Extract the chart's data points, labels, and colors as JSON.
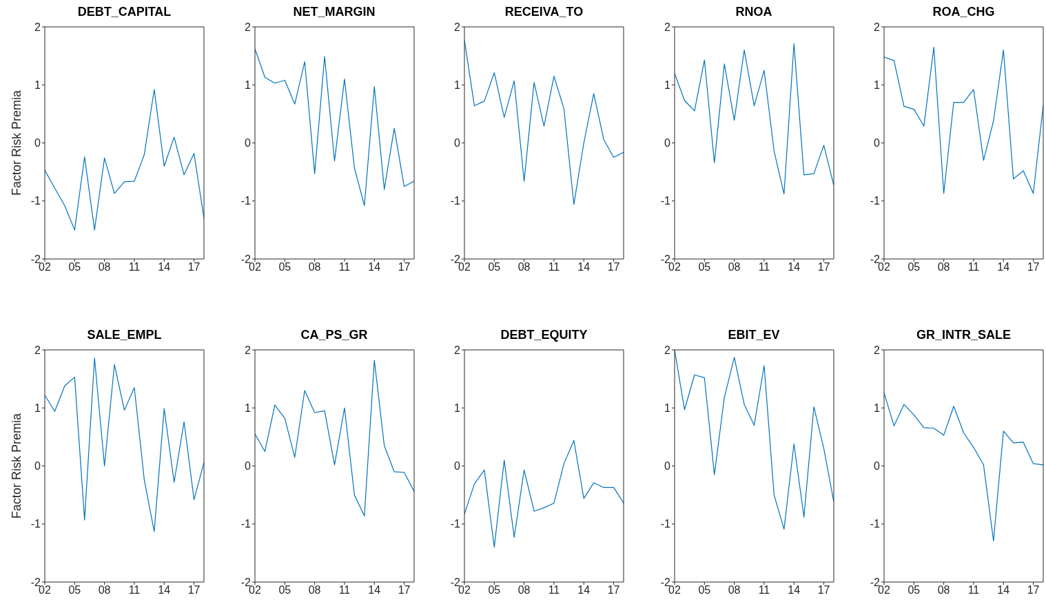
{
  "chart_data": [
    {
      "type": "line",
      "title": "DEBT_CAPITAL",
      "ylabel": "Factor Risk Premia",
      "color": "#0072bd",
      "x": [
        2002,
        2003,
        2004,
        2005,
        2006,
        2007,
        2008,
        2009,
        2010,
        2011,
        2012,
        2013,
        2014,
        2015,
        2016,
        2017,
        2018
      ],
      "values": [
        -0.47,
        -0.78,
        -1.08,
        -1.5,
        -0.24,
        -1.5,
        -0.26,
        -0.87,
        -0.67,
        -0.66,
        -0.2,
        0.92,
        -0.4,
        0.1,
        -0.55,
        -0.18,
        -1.3
      ],
      "xlim": [
        2002,
        2018
      ],
      "xticks": [
        {
          "value": 2002,
          "label": "02"
        },
        {
          "value": 2005,
          "label": "05"
        },
        {
          "value": 2008,
          "label": "08"
        },
        {
          "value": 2011,
          "label": "11"
        },
        {
          "value": 2014,
          "label": "14"
        },
        {
          "value": 2017,
          "label": "17"
        }
      ],
      "ylim": [
        -2,
        2
      ],
      "yticks": [
        -2,
        -1,
        0,
        1,
        2
      ]
    },
    {
      "type": "line",
      "title": "NET_MARGIN",
      "color": "#0072bd",
      "x": [
        2002,
        2003,
        2004,
        2005,
        2006,
        2007,
        2008,
        2009,
        2010,
        2011,
        2012,
        2013,
        2014,
        2015,
        2016,
        2017,
        2018
      ],
      "values": [
        1.62,
        1.13,
        1.03,
        1.08,
        0.67,
        1.4,
        -0.53,
        1.49,
        -0.31,
        1.1,
        -0.43,
        -1.08,
        0.97,
        -0.8,
        0.25,
        -0.75,
        -0.66
      ],
      "xlim": [
        2002,
        2018
      ],
      "xticks": [
        {
          "value": 2002,
          "label": "02"
        },
        {
          "value": 2005,
          "label": "05"
        },
        {
          "value": 2008,
          "label": "08"
        },
        {
          "value": 2011,
          "label": "11"
        },
        {
          "value": 2014,
          "label": "14"
        },
        {
          "value": 2017,
          "label": "17"
        }
      ],
      "ylim": [
        -2,
        2
      ],
      "yticks": [
        -2,
        -1,
        0,
        1,
        2
      ]
    },
    {
      "type": "line",
      "title": "RECEIVA_TO",
      "color": "#0072bd",
      "x": [
        2002,
        2003,
        2004,
        2005,
        2006,
        2007,
        2008,
        2009,
        2010,
        2011,
        2012,
        2013,
        2014,
        2015,
        2016,
        2017,
        2018
      ],
      "values": [
        1.77,
        0.64,
        0.72,
        1.21,
        0.44,
        1.07,
        -0.66,
        1.04,
        0.29,
        1.15,
        0.59,
        -1.06,
        0.0,
        0.85,
        0.06,
        -0.25,
        -0.16
      ],
      "xlim": [
        2002,
        2018
      ],
      "xticks": [
        {
          "value": 2002,
          "label": "02"
        },
        {
          "value": 2005,
          "label": "05"
        },
        {
          "value": 2008,
          "label": "08"
        },
        {
          "value": 2011,
          "label": "11"
        },
        {
          "value": 2014,
          "label": "14"
        },
        {
          "value": 2017,
          "label": "17"
        }
      ],
      "ylim": [
        -2,
        2
      ],
      "yticks": [
        -2,
        -1,
        0,
        1,
        2
      ]
    },
    {
      "type": "line",
      "title": "RNOA",
      "color": "#0072bd",
      "x": [
        2002,
        2003,
        2004,
        2005,
        2006,
        2007,
        2008,
        2009,
        2010,
        2011,
        2012,
        2013,
        2014,
        2015,
        2016,
        2017,
        2018
      ],
      "values": [
        1.2,
        0.73,
        0.55,
        1.43,
        -0.34,
        1.36,
        0.39,
        1.6,
        0.64,
        1.25,
        -0.14,
        -0.88,
        1.71,
        -0.55,
        -0.53,
        -0.04,
        -0.73
      ],
      "xlim": [
        2002,
        2018
      ],
      "xticks": [
        {
          "value": 2002,
          "label": "02"
        },
        {
          "value": 2005,
          "label": "05"
        },
        {
          "value": 2008,
          "label": "08"
        },
        {
          "value": 2011,
          "label": "11"
        },
        {
          "value": 2014,
          "label": "14"
        },
        {
          "value": 2017,
          "label": "17"
        }
      ],
      "ylim": [
        -2,
        2
      ],
      "yticks": [
        -2,
        -1,
        0,
        1,
        2
      ]
    },
    {
      "type": "line",
      "title": "ROA_CHG",
      "color": "#0072bd",
      "x": [
        2002,
        2003,
        2004,
        2005,
        2006,
        2007,
        2008,
        2009,
        2010,
        2011,
        2012,
        2013,
        2014,
        2015,
        2016,
        2017,
        2018
      ],
      "values": [
        1.48,
        1.42,
        0.63,
        0.58,
        0.29,
        1.65,
        -0.87,
        0.7,
        0.7,
        0.92,
        -0.3,
        0.38,
        1.6,
        -0.62,
        -0.48,
        -0.87,
        0.65
      ],
      "xlim": [
        2002,
        2018
      ],
      "xticks": [
        {
          "value": 2002,
          "label": "02"
        },
        {
          "value": 2005,
          "label": "05"
        },
        {
          "value": 2008,
          "label": "08"
        },
        {
          "value": 2011,
          "label": "11"
        },
        {
          "value": 2014,
          "label": "14"
        },
        {
          "value": 2017,
          "label": "17"
        }
      ],
      "ylim": [
        -2,
        2
      ],
      "yticks": [
        -2,
        -1,
        0,
        1,
        2
      ]
    },
    {
      "type": "line",
      "title": "SALE_EMPL",
      "ylabel": "Factor Risk Premia",
      "color": "#0072bd",
      "x": [
        2002,
        2003,
        2004,
        2005,
        2006,
        2007,
        2008,
        2009,
        2010,
        2011,
        2012,
        2013,
        2014,
        2015,
        2016,
        2017,
        2018
      ],
      "values": [
        1.22,
        0.94,
        1.38,
        1.53,
        -0.93,
        1.86,
        0.0,
        1.75,
        0.96,
        1.35,
        -0.24,
        -1.13,
        0.99,
        -0.28,
        0.76,
        -0.58,
        0.06
      ],
      "xlim": [
        2002,
        2018
      ],
      "xticks": [
        {
          "value": 2002,
          "label": "02"
        },
        {
          "value": 2005,
          "label": "05"
        },
        {
          "value": 2008,
          "label": "08"
        },
        {
          "value": 2011,
          "label": "11"
        },
        {
          "value": 2014,
          "label": "14"
        },
        {
          "value": 2017,
          "label": "17"
        }
      ],
      "ylim": [
        -2,
        2
      ],
      "yticks": [
        -2,
        -1,
        0,
        1,
        2
      ]
    },
    {
      "type": "line",
      "title": "CA_PS_GR",
      "color": "#0072bd",
      "x": [
        2002,
        2003,
        2004,
        2005,
        2006,
        2007,
        2008,
        2009,
        2010,
        2011,
        2012,
        2013,
        2014,
        2015,
        2016,
        2017,
        2018
      ],
      "values": [
        0.55,
        0.25,
        1.05,
        0.82,
        0.15,
        1.3,
        0.92,
        0.95,
        0.02,
        1.0,
        -0.5,
        -0.86,
        1.82,
        0.35,
        -0.1,
        -0.11,
        -0.44
      ],
      "xlim": [
        2002,
        2018
      ],
      "xticks": [
        {
          "value": 2002,
          "label": "02"
        },
        {
          "value": 2005,
          "label": "05"
        },
        {
          "value": 2008,
          "label": "08"
        },
        {
          "value": 2011,
          "label": "11"
        },
        {
          "value": 2014,
          "label": "14"
        },
        {
          "value": 2017,
          "label": "17"
        }
      ],
      "ylim": [
        -2,
        2
      ],
      "yticks": [
        -2,
        -1,
        0,
        1,
        2
      ]
    },
    {
      "type": "line",
      "title": "DEBT_EQUITY",
      "color": "#0072bd",
      "x": [
        2002,
        2003,
        2004,
        2005,
        2006,
        2007,
        2008,
        2009,
        2010,
        2011,
        2012,
        2013,
        2014,
        2015,
        2016,
        2017,
        2018
      ],
      "values": [
        -0.83,
        -0.31,
        -0.07,
        -1.4,
        0.1,
        -1.23,
        -0.07,
        -0.78,
        -0.72,
        -0.64,
        0.04,
        0.44,
        -0.56,
        -0.29,
        -0.37,
        -0.37,
        -0.64
      ],
      "xlim": [
        2002,
        2018
      ],
      "xticks": [
        {
          "value": 2002,
          "label": "02"
        },
        {
          "value": 2005,
          "label": "05"
        },
        {
          "value": 2008,
          "label": "08"
        },
        {
          "value": 2011,
          "label": "11"
        },
        {
          "value": 2014,
          "label": "14"
        },
        {
          "value": 2017,
          "label": "17"
        }
      ],
      "ylim": [
        -2,
        2
      ],
      "yticks": [
        -2,
        -1,
        0,
        1,
        2
      ]
    },
    {
      "type": "line",
      "title": "EBIT_EV",
      "color": "#0072bd",
      "x": [
        2002,
        2003,
        2004,
        2005,
        2006,
        2007,
        2008,
        2009,
        2010,
        2011,
        2012,
        2013,
        2014,
        2015,
        2016,
        2017,
        2018
      ],
      "values": [
        2.0,
        0.97,
        1.57,
        1.52,
        -0.15,
        1.18,
        1.87,
        1.06,
        0.7,
        1.73,
        -0.5,
        -1.09,
        0.38,
        -0.88,
        1.02,
        0.3,
        -0.62
      ],
      "xlim": [
        2002,
        2018
      ],
      "xticks": [
        {
          "value": 2002,
          "label": "02"
        },
        {
          "value": 2005,
          "label": "05"
        },
        {
          "value": 2008,
          "label": "08"
        },
        {
          "value": 2011,
          "label": "11"
        },
        {
          "value": 2014,
          "label": "14"
        },
        {
          "value": 2017,
          "label": "17"
        }
      ],
      "ylim": [
        -2,
        2
      ],
      "yticks": [
        -2,
        -1,
        0,
        1,
        2
      ]
    },
    {
      "type": "line",
      "title": "GR_INTR_SALE",
      "color": "#0072bd",
      "x": [
        2002,
        2003,
        2004,
        2005,
        2006,
        2007,
        2008,
        2009,
        2010,
        2011,
        2012,
        2013,
        2014,
        2015,
        2016,
        2017,
        2018
      ],
      "values": [
        1.26,
        0.69,
        1.06,
        0.88,
        0.66,
        0.65,
        0.53,
        1.03,
        0.57,
        0.32,
        0.02,
        -1.29,
        0.6,
        0.4,
        0.41,
        0.04,
        0.02
      ],
      "xlim": [
        2002,
        2018
      ],
      "xticks": [
        {
          "value": 2002,
          "label": "02"
        },
        {
          "value": 2005,
          "label": "05"
        },
        {
          "value": 2008,
          "label": "08"
        },
        {
          "value": 2011,
          "label": "11"
        },
        {
          "value": 2014,
          "label": "14"
        },
        {
          "value": 2017,
          "label": "17"
        }
      ],
      "ylim": [
        -2,
        2
      ],
      "yticks": [
        -2,
        -1,
        0,
        1,
        2
      ]
    }
  ]
}
